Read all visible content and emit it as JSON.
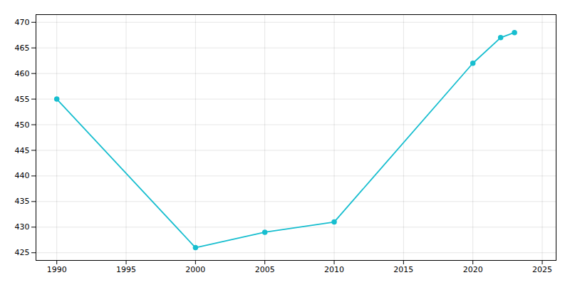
{
  "chart_data": {
    "type": "line",
    "x": [
      1990,
      2000,
      2005,
      2010,
      2020,
      2022,
      2023
    ],
    "values": [
      455,
      426,
      429,
      431,
      462,
      467,
      468
    ],
    "color": "#17BECF",
    "marker": "circle",
    "xlim": [
      1988.5,
      2026
    ],
    "ylim": [
      423.5,
      471.5
    ],
    "xticks": [
      1990,
      1995,
      2000,
      2005,
      2010,
      2015,
      2020,
      2025
    ],
    "yticks": [
      425,
      430,
      435,
      440,
      445,
      450,
      455,
      460,
      465,
      470
    ],
    "grid": true
  }
}
